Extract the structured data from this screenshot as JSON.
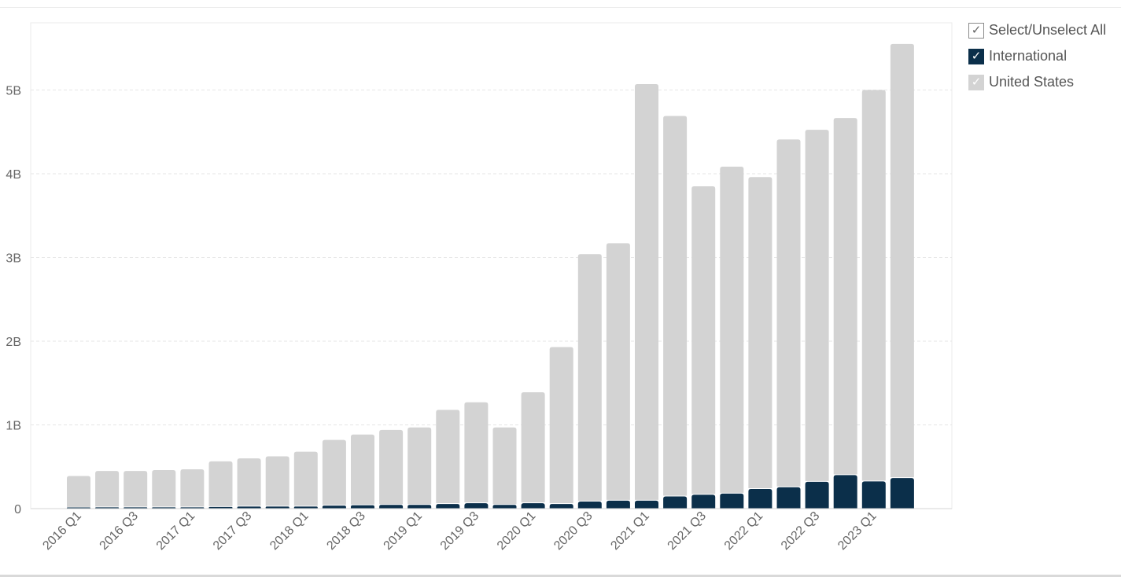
{
  "chart_data": {
    "type": "bar",
    "stacked": true,
    "categories": [
      "2016 Q1",
      "2016 Q2",
      "2016 Q3",
      "2016 Q4",
      "2017 Q1",
      "2017 Q2",
      "2017 Q3",
      "2017 Q4",
      "2018 Q1",
      "2018 Q2",
      "2018 Q3",
      "2018 Q4",
      "2019 Q1",
      "2019 Q2",
      "2019 Q3",
      "2019 Q4",
      "2020 Q1",
      "2020 Q2",
      "2020 Q3",
      "2020 Q4",
      "2021 Q1",
      "2021 Q2",
      "2021 Q3",
      "2021 Q4",
      "2022 Q1",
      "2022 Q2",
      "2022 Q3",
      "2022 Q4",
      "2023 Q1",
      "2023 Q2"
    ],
    "x_tick_labels": [
      "2016 Q1",
      "2016 Q3",
      "2017 Q1",
      "2017 Q3",
      "2018 Q1",
      "2018 Q3",
      "2019 Q1",
      "2019 Q3",
      "2020 Q1",
      "2020 Q3",
      "2021 Q1",
      "2021 Q3",
      "2022 Q1",
      "2022 Q3",
      "2023 Q1"
    ],
    "series": [
      {
        "name": "International",
        "color": "#0b2f4a",
        "values": [
          0.01,
          0.015,
          0.015,
          0.015,
          0.015,
          0.02,
          0.025,
          0.025,
          0.025,
          0.035,
          0.04,
          0.045,
          0.045,
          0.055,
          0.065,
          0.045,
          0.065,
          0.055,
          0.085,
          0.095,
          0.095,
          0.145,
          0.165,
          0.18,
          0.235,
          0.255,
          0.32,
          0.4,
          0.325,
          0.365
        ]
      },
      {
        "name": "United States",
        "color": "#d3d3d3",
        "values": [
          0.38,
          0.435,
          0.435,
          0.445,
          0.455,
          0.545,
          0.575,
          0.6,
          0.655,
          0.785,
          0.845,
          0.895,
          0.925,
          1.125,
          1.205,
          0.925,
          1.325,
          1.875,
          2.955,
          3.075,
          4.975,
          4.545,
          3.685,
          3.905,
          3.725,
          4.155,
          4.205,
          4.265,
          4.675,
          5.185
        ]
      }
    ],
    "y_ticks": [
      {
        "value": 0,
        "label": "0"
      },
      {
        "value": 1,
        "label": "1B"
      },
      {
        "value": 2,
        "label": "2B"
      },
      {
        "value": 3,
        "label": "3B"
      },
      {
        "value": 4,
        "label": "4B"
      },
      {
        "value": 5,
        "label": "5B"
      }
    ],
    "ylim": [
      0,
      5.8
    ],
    "y_unit": "billions",
    "grid": true,
    "legend_position": "top-right"
  },
  "legend": {
    "items": [
      {
        "id": "all",
        "label": "Select/Unselect All",
        "check": "✓",
        "color": "#ffffff",
        "checked": true
      },
      {
        "id": "intl",
        "label": "International",
        "check": "✓",
        "color": "#0b2f4a",
        "checked": true
      },
      {
        "id": "us",
        "label": "United States",
        "check": "✓",
        "color": "#d3d3d3",
        "checked": true
      }
    ]
  }
}
